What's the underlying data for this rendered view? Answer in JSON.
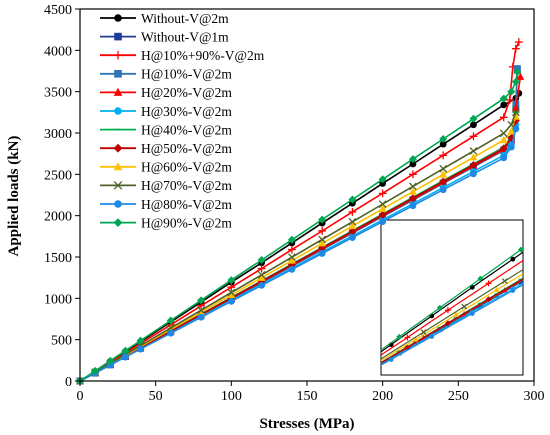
{
  "chart_data": {
    "type": "line",
    "xlabel": "Stresses (MPa)",
    "ylabel": "Applied loads (kN)",
    "xlim": [
      0,
      300
    ],
    "ylim": [
      0,
      4500
    ],
    "xticks": [
      "0",
      "50",
      "100",
      "150",
      "200",
      "250",
      "300"
    ],
    "yticks": [
      "0",
      "500",
      "1000",
      "1500",
      "2000",
      "2500",
      "3000",
      "3500",
      "4000",
      "4500"
    ],
    "grid": false,
    "legend_position": "top-left",
    "inset": true,
    "series": [
      {
        "name": "Without-V@2m",
        "color": "#000000",
        "marker": "circle",
        "x": [
          0,
          10,
          20,
          30,
          40,
          60,
          80,
          100,
          120,
          140,
          160,
          180,
          200,
          220,
          240,
          260,
          280,
          288,
          290
        ],
        "y": [
          0,
          115,
          235,
          355,
          475,
          715,
          955,
          1195,
          1430,
          1670,
          1910,
          2150,
          2390,
          2625,
          2865,
          3100,
          3340,
          3420,
          3480
        ]
      },
      {
        "name": "Without-V@1m",
        "color": "#1f3c9a",
        "marker": "square",
        "x": [
          0,
          10,
          20,
          30,
          40,
          60,
          80,
          100,
          120,
          140,
          160,
          180,
          200,
          220,
          240,
          260,
          280,
          285,
          288,
          289
        ],
        "y": [
          0,
          95,
          195,
          295,
          395,
          595,
          790,
          990,
          1190,
          1390,
          1590,
          1790,
          1990,
          2190,
          2390,
          2590,
          2790,
          2900,
          3300,
          3760
        ]
      },
      {
        "name": "H@10%+90%-V@2m",
        "color": "#ff0000",
        "marker": "plus",
        "x": [
          0,
          10,
          20,
          30,
          40,
          60,
          80,
          100,
          120,
          140,
          160,
          180,
          200,
          220,
          240,
          260,
          280,
          284,
          286,
          288,
          290
        ],
        "y": [
          0,
          110,
          225,
          340,
          455,
          680,
          910,
          1135,
          1360,
          1590,
          1815,
          2045,
          2270,
          2500,
          2730,
          2960,
          3190,
          3400,
          3800,
          4020,
          4100
        ]
      },
      {
        "name": "H@10%-V@2m",
        "color": "#2e75b6",
        "marker": "square",
        "x": [
          0,
          10,
          20,
          30,
          40,
          60,
          80,
          100,
          120,
          140,
          160,
          180,
          200,
          220,
          240,
          260,
          280,
          285,
          288,
          289
        ],
        "y": [
          0,
          98,
          198,
          298,
          398,
          598,
          795,
          995,
          1195,
          1395,
          1595,
          1795,
          1995,
          2195,
          2395,
          2595,
          2795,
          2920,
          3350,
          3780
        ]
      },
      {
        "name": "H@20%-V@2m",
        "color": "#ff0000",
        "marker": "triangle",
        "x": [
          0,
          10,
          20,
          30,
          40,
          60,
          80,
          100,
          120,
          140,
          160,
          180,
          200,
          220,
          240,
          260,
          280,
          285,
          288,
          291
        ],
        "y": [
          0,
          100,
          200,
          300,
          400,
          600,
          800,
          1000,
          1200,
          1400,
          1600,
          1800,
          2000,
          2200,
          2400,
          2600,
          2800,
          2920,
          3300,
          3680
        ]
      },
      {
        "name": "H@30%-V@2m",
        "color": "#00b0f0",
        "marker": "circle",
        "x": [
          0,
          10,
          20,
          30,
          40,
          60,
          80,
          100,
          120,
          140,
          160,
          180,
          200,
          220,
          240,
          260,
          280,
          285,
          288
        ],
        "y": [
          0,
          97,
          195,
          292,
          390,
          585,
          780,
          975,
          1170,
          1365,
          1560,
          1755,
          1950,
          2145,
          2340,
          2535,
          2730,
          2860,
          3100
        ]
      },
      {
        "name": "H@40%-V@2m",
        "color": "#00b050",
        "marker": "dash",
        "x": [
          0,
          10,
          20,
          30,
          40,
          60,
          80,
          100,
          120,
          140,
          160,
          180,
          200,
          220,
          240,
          260,
          280,
          285,
          288
        ],
        "y": [
          0,
          101,
          202,
          303,
          404,
          606,
          808,
          1010,
          1212,
          1414,
          1616,
          1818,
          2020,
          2222,
          2424,
          2626,
          2828,
          2950,
          3250
        ]
      },
      {
        "name": "H@50%-V@2m",
        "color": "#c00000",
        "marker": "diamond",
        "x": [
          0,
          10,
          20,
          30,
          40,
          60,
          80,
          100,
          120,
          140,
          160,
          180,
          200,
          220,
          240,
          260,
          280,
          285,
          288
        ],
        "y": [
          0,
          100,
          201,
          302,
          402,
          603,
          804,
          1005,
          1206,
          1407,
          1608,
          1809,
          2010,
          2211,
          2412,
          2613,
          2814,
          2940,
          3150
        ]
      },
      {
        "name": "H@60%-V@2m",
        "color": "#ffc000",
        "marker": "triangle",
        "x": [
          0,
          10,
          20,
          30,
          40,
          60,
          80,
          100,
          120,
          140,
          160,
          180,
          200,
          220,
          240,
          260,
          280,
          285,
          288
        ],
        "y": [
          0,
          104,
          208,
          312,
          416,
          625,
          833,
          1041,
          1249,
          1457,
          1666,
          1874,
          2082,
          2290,
          2498,
          2706,
          2914,
          3020,
          3200
        ]
      },
      {
        "name": "H@70%-V@2m",
        "color": "#4f6228",
        "marker": "cross",
        "x": [
          0,
          10,
          20,
          30,
          40,
          60,
          80,
          100,
          120,
          140,
          160,
          180,
          200,
          220,
          240,
          260,
          280,
          285,
          288
        ],
        "y": [
          0,
          107,
          214,
          321,
          428,
          642,
          856,
          1070,
          1284,
          1498,
          1712,
          1926,
          2140,
          2354,
          2568,
          2782,
          2996,
          3100,
          3250
        ]
      },
      {
        "name": "H@80%-V@2m",
        "color": "#1e88e5",
        "marker": "circle",
        "x": [
          0,
          10,
          20,
          30,
          40,
          60,
          80,
          100,
          120,
          140,
          160,
          180,
          200,
          220,
          240,
          260,
          280,
          285,
          288
        ],
        "y": [
          0,
          96,
          193,
          289,
          386,
          578,
          771,
          964,
          1157,
          1350,
          1542,
          1735,
          1928,
          2121,
          2314,
          2506,
          2699,
          2830,
          3050
        ]
      },
      {
        "name": "H@90%-V@2m",
        "color": "#00a651",
        "marker": "diamond",
        "x": [
          0,
          10,
          20,
          30,
          40,
          60,
          80,
          100,
          120,
          140,
          160,
          180,
          200,
          220,
          240,
          260,
          280,
          285,
          288,
          289
        ],
        "y": [
          0,
          122,
          244,
          366,
          488,
          732,
          976,
          1220,
          1464,
          1708,
          1952,
          2196,
          2440,
          2684,
          2928,
          3172,
          3416,
          3500,
          3620,
          3740
        ]
      }
    ]
  }
}
